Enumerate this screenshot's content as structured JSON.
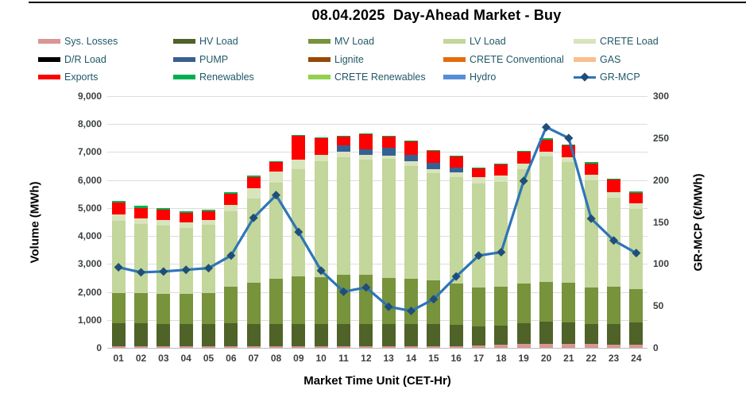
{
  "header": {
    "title": "08.04.2025  Day-Ahead Market - Buy"
  },
  "legend": {
    "items": [
      {
        "label": "Sys. Losses",
        "color": "#d99694",
        "type": "box"
      },
      {
        "label": "HV Load",
        "color": "#4f6228",
        "type": "box"
      },
      {
        "label": "MV Load",
        "color": "#77933c",
        "type": "box"
      },
      {
        "label": "LV Load",
        "color": "#c3d69b",
        "type": "box"
      },
      {
        "label": "CRETE Load",
        "color": "#d7e4bc",
        "type": "box"
      },
      {
        "label": "D/R Load",
        "color": "#000000",
        "type": "box"
      },
      {
        "label": "PUMP",
        "color": "#376092",
        "type": "box"
      },
      {
        "label": "Lignite",
        "color": "#984807",
        "type": "box"
      },
      {
        "label": "CRETE Conventional",
        "color": "#e46c0a",
        "type": "box"
      },
      {
        "label": "GAS",
        "color": "#fabf8f",
        "type": "box"
      },
      {
        "label": "Exports",
        "color": "#ff0000",
        "type": "box"
      },
      {
        "label": "Renewables",
        "color": "#00b050",
        "type": "box"
      },
      {
        "label": "CRETE Renewables",
        "color": "#92d050",
        "type": "box"
      },
      {
        "label": "Hydro",
        "color": "#558ed5",
        "type": "box"
      },
      {
        "label": "GR-MCP",
        "color": "#2e75b6",
        "marker_color": "#1f4e79",
        "type": "line"
      }
    ]
  },
  "chart_data": {
    "type": "stacked-bar-line",
    "title": "08.04.2025  Day-Ahead Market - Buy",
    "categories": [
      "01",
      "02",
      "03",
      "04",
      "05",
      "06",
      "07",
      "08",
      "09",
      "10",
      "11",
      "12",
      "13",
      "14",
      "15",
      "16",
      "17",
      "18",
      "19",
      "20",
      "21",
      "22",
      "23",
      "24"
    ],
    "x_label": "Market Time Unit (CET-Hr)",
    "y_left": {
      "label": "Volume (MWh)",
      "min": 0,
      "max": 9000,
      "step": 1000,
      "ticks": [
        "0",
        "1,000",
        "2,000",
        "3,000",
        "4,000",
        "5,000",
        "6,000",
        "7,000",
        "8,000",
        "9,000"
      ]
    },
    "y_right": {
      "label": "GR-MCP (€/MWh)",
      "min": 0,
      "max": 300,
      "step": 50,
      "ticks": [
        "0",
        "50",
        "100",
        "150",
        "200",
        "250",
        "300"
      ]
    },
    "grid": "horizontal",
    "legend_position": "top",
    "series": [
      {
        "name": "Sys. Losses",
        "color": "#d99694",
        "values": [
          50,
          50,
          50,
          50,
          50,
          50,
          50,
          50,
          50,
          50,
          50,
          50,
          50,
          50,
          50,
          60,
          80,
          120,
          130,
          150,
          150,
          140,
          100,
          100
        ]
      },
      {
        "name": "HV Load",
        "color": "#4f6228",
        "values": [
          820,
          820,
          810,
          810,
          810,
          820,
          810,
          800,
          800,
          800,
          800,
          800,
          800,
          800,
          790,
          760,
          680,
          680,
          750,
          780,
          750,
          710,
          760,
          800
        ]
      },
      {
        "name": "MV Load",
        "color": "#77933c",
        "values": [
          1100,
          1080,
          1070,
          1060,
          1090,
          1310,
          1480,
          1630,
          1700,
          1680,
          1750,
          1770,
          1660,
          1620,
          1580,
          1470,
          1390,
          1400,
          1420,
          1420,
          1420,
          1300,
          1340,
          1210
        ]
      },
      {
        "name": "LV Load",
        "color": "#c3d69b",
        "values": [
          2570,
          2480,
          2430,
          2380,
          2460,
          2710,
          2990,
          3430,
          3840,
          4140,
          4220,
          4100,
          4240,
          4030,
          3830,
          3810,
          3730,
          3730,
          4080,
          4490,
          4320,
          3840,
          3170,
          2870
        ]
      },
      {
        "name": "CRETE Load",
        "color": "#d7e4bc",
        "values": [
          220,
          200,
          200,
          200,
          160,
          210,
          390,
          400,
          350,
          240,
          190,
          170,
          110,
          180,
          150,
          180,
          220,
          230,
          200,
          170,
          180,
          190,
          190,
          190
        ]
      },
      {
        "name": "D/R Load",
        "color": "#000000",
        "values": [
          0,
          0,
          0,
          0,
          0,
          0,
          0,
          0,
          0,
          0,
          0,
          0,
          0,
          0,
          0,
          0,
          0,
          0,
          0,
          0,
          0,
          0,
          0,
          0
        ]
      },
      {
        "name": "PUMP",
        "color": "#376092",
        "values": [
          0,
          0,
          0,
          0,
          0,
          0,
          0,
          0,
          0,
          0,
          230,
          200,
          290,
          220,
          220,
          160,
          0,
          0,
          0,
          0,
          0,
          0,
          0,
          0
        ]
      },
      {
        "name": "Lignite",
        "color": "#984807",
        "values": [
          0,
          0,
          0,
          0,
          0,
          0,
          0,
          0,
          0,
          0,
          0,
          0,
          0,
          0,
          0,
          0,
          0,
          0,
          0,
          0,
          0,
          0,
          0,
          0
        ]
      },
      {
        "name": "CRETE Conventional",
        "color": "#e46c0a",
        "values": [
          0,
          0,
          0,
          0,
          0,
          0,
          0,
          0,
          0,
          0,
          0,
          0,
          0,
          0,
          0,
          0,
          0,
          0,
          0,
          0,
          0,
          0,
          0,
          0
        ]
      },
      {
        "name": "GAS",
        "color": "#fabf8f",
        "values": [
          0,
          0,
          0,
          0,
          0,
          0,
          0,
          0,
          0,
          0,
          0,
          0,
          0,
          0,
          0,
          0,
          0,
          0,
          0,
          0,
          0,
          0,
          0,
          0
        ]
      },
      {
        "name": "Exports",
        "color": "#ff0000",
        "values": [
          430,
          380,
          380,
          320,
          320,
          400,
          390,
          340,
          840,
          590,
          330,
          560,
          420,
          500,
          440,
          430,
          340,
          410,
          420,
          420,
          410,
          400,
          450,
          370
        ]
      },
      {
        "name": "Renewables",
        "color": "#00b050",
        "values": [
          60,
          60,
          60,
          50,
          60,
          70,
          60,
          20,
          20,
          20,
          20,
          20,
          20,
          10,
          10,
          10,
          10,
          10,
          40,
          80,
          30,
          60,
          50,
          50
        ]
      },
      {
        "name": "CRETE Renewables",
        "color": "#92d050",
        "values": [
          0,
          0,
          0,
          0,
          0,
          0,
          0,
          0,
          0,
          0,
          0,
          0,
          0,
          0,
          0,
          0,
          0,
          0,
          0,
          0,
          0,
          0,
          0,
          0
        ]
      },
      {
        "name": "Hydro",
        "color": "#558ed5",
        "values": [
          0,
          0,
          0,
          0,
          0,
          0,
          0,
          0,
          0,
          0,
          0,
          0,
          0,
          0,
          0,
          0,
          0,
          0,
          0,
          0,
          0,
          0,
          0,
          0
        ]
      }
    ],
    "line": {
      "name": "GR-MCP",
      "color": "#2e75b6",
      "marker_color": "#1f4e79",
      "marker": "diamond",
      "axis": "right",
      "values": [
        96,
        90,
        91,
        93,
        95,
        110,
        155,
        182,
        138,
        92,
        67,
        72,
        49,
        44,
        58,
        85,
        110,
        114,
        199,
        263,
        250,
        154,
        128,
        113
      ]
    }
  }
}
